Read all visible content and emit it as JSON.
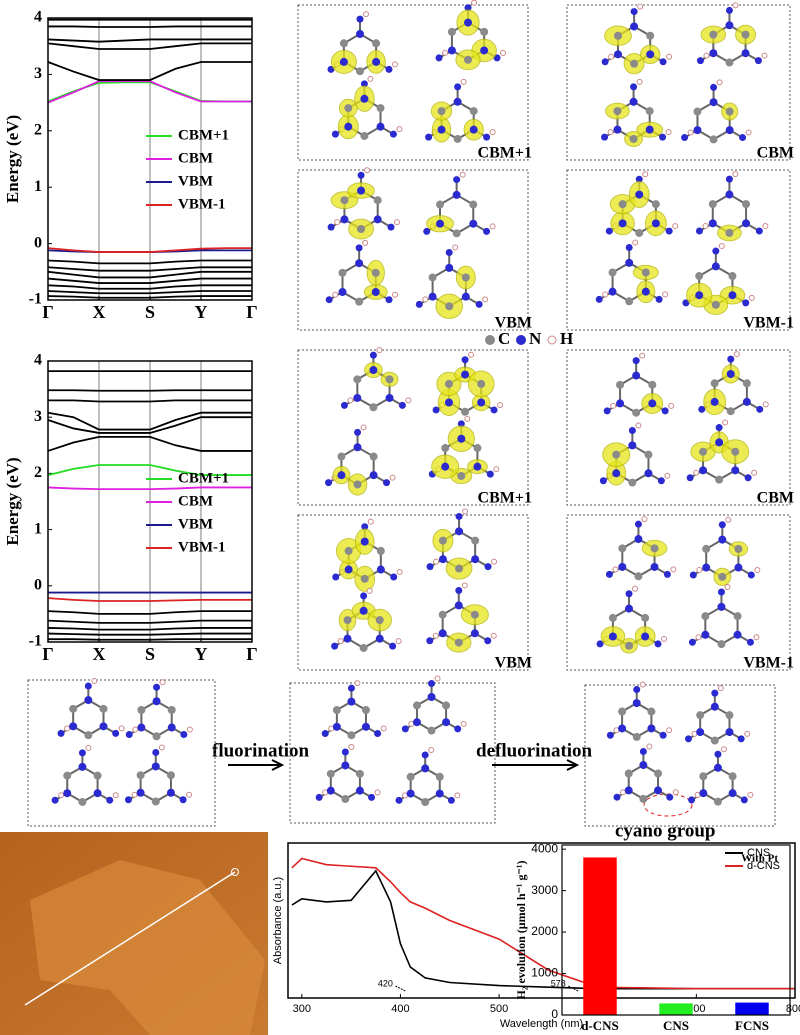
{
  "chart_data": [
    {
      "type": "line",
      "ylabel": "Energy (eV)",
      "x": [
        0,
        0.5,
        1,
        1.5,
        2,
        2.5,
        3,
        3.5,
        4
      ],
      "xlim": [
        0,
        4
      ],
      "xticks": [
        {
          "value": 0,
          "label": "Γ"
        },
        {
          "value": 1,
          "label": "X"
        },
        {
          "value": 2,
          "label": "S"
        },
        {
          "value": 3,
          "label": "Y"
        },
        {
          "value": 4,
          "label": "Γ"
        }
      ],
      "ylim": [
        -1,
        4
      ],
      "yticks": [
        -1,
        0,
        1,
        2,
        3,
        4
      ],
      "grid": true,
      "series": [
        {
          "name": "CBM+1",
          "color": "#22dd22",
          "values": [
            2.52,
            2.7,
            2.85,
            2.86,
            2.86,
            2.7,
            2.53,
            2.52,
            2.52
          ]
        },
        {
          "name": "CBM",
          "color": "#e020e0",
          "values": [
            2.5,
            2.68,
            2.88,
            2.88,
            2.88,
            2.68,
            2.52,
            2.52,
            2.52
          ]
        },
        {
          "name": "VBM",
          "color": "#1a1a8c",
          "values": [
            -0.12,
            -0.14,
            -0.15,
            -0.15,
            -0.15,
            -0.14,
            -0.12,
            -0.12,
            -0.12
          ]
        },
        {
          "name": "VBM-1",
          "color": "#dd2222",
          "values": [
            -0.08,
            -0.12,
            -0.15,
            -0.15,
            -0.15,
            -0.12,
            -0.09,
            -0.08,
            -0.08
          ]
        },
        {
          "color": "#000000",
          "values": [
            3.22,
            3.05,
            2.9,
            2.9,
            2.9,
            3.1,
            3.22,
            3.22,
            3.22
          ]
        },
        {
          "color": "#000000",
          "values": [
            3.55,
            3.5,
            3.45,
            3.45,
            3.45,
            3.5,
            3.55,
            3.55,
            3.55
          ]
        },
        {
          "color": "#000000",
          "values": [
            3.62,
            3.6,
            3.58,
            3.6,
            3.62,
            3.62,
            3.62,
            3.62,
            3.62
          ]
        },
        {
          "color": "#000000",
          "values": [
            3.85,
            3.85,
            3.84,
            3.84,
            3.84,
            3.85,
            3.85,
            3.85,
            3.85
          ]
        },
        {
          "color": "#000000",
          "values": [
            3.97,
            3.97,
            3.97,
            3.97,
            3.97,
            3.97,
            3.97,
            3.97,
            3.97
          ]
        },
        {
          "color": "#000000",
          "values": [
            -0.3,
            -0.32,
            -0.35,
            -0.35,
            -0.35,
            -0.32,
            -0.3,
            -0.3,
            -0.3
          ]
        },
        {
          "color": "#000000",
          "values": [
            -0.42,
            -0.45,
            -0.48,
            -0.48,
            -0.48,
            -0.45,
            -0.42,
            -0.42,
            -0.42
          ]
        },
        {
          "color": "#000000",
          "values": [
            -0.5,
            -0.55,
            -0.6,
            -0.6,
            -0.6,
            -0.55,
            -0.5,
            -0.5,
            -0.5
          ]
        },
        {
          "color": "#000000",
          "values": [
            -0.62,
            -0.66,
            -0.7,
            -0.7,
            -0.7,
            -0.66,
            -0.62,
            -0.62,
            -0.62
          ]
        },
        {
          "color": "#000000",
          "values": [
            -0.74,
            -0.76,
            -0.8,
            -0.8,
            -0.8,
            -0.76,
            -0.74,
            -0.74,
            -0.74
          ]
        },
        {
          "color": "#000000",
          "values": [
            -0.84,
            -0.86,
            -0.88,
            -0.88,
            -0.88,
            -0.86,
            -0.84,
            -0.84,
            -0.84
          ]
        },
        {
          "color": "#000000",
          "values": [
            -0.93,
            -0.94,
            -0.96,
            -0.96,
            -0.96,
            -0.94,
            -0.93,
            -0.93,
            -0.93
          ]
        }
      ]
    },
    {
      "type": "line",
      "ylabel": "Energy (eV)",
      "x": [
        0,
        0.5,
        1,
        1.5,
        2,
        2.5,
        3,
        3.5,
        4
      ],
      "xlim": [
        0,
        4
      ],
      "xticks": [
        {
          "value": 0,
          "label": "Γ"
        },
        {
          "value": 1,
          "label": "X"
        },
        {
          "value": 2,
          "label": "S"
        },
        {
          "value": 3,
          "label": "Y"
        },
        {
          "value": 4,
          "label": "Γ"
        }
      ],
      "ylim": [
        -1,
        4
      ],
      "yticks": [
        -1,
        0,
        1,
        2,
        3,
        4
      ],
      "grid": true,
      "series": [
        {
          "name": "CBM+1",
          "color": "#22dd22",
          "values": [
            1.97,
            2.08,
            2.15,
            2.15,
            2.15,
            2.05,
            1.97,
            1.97,
            1.97
          ]
        },
        {
          "name": "CBM",
          "color": "#e020e0",
          "values": [
            1.75,
            1.73,
            1.72,
            1.72,
            1.72,
            1.73,
            1.75,
            1.75,
            1.75
          ]
        },
        {
          "name": "VBM",
          "color": "#1a1a8c",
          "values": [
            -0.12,
            -0.12,
            -0.12,
            -0.12,
            -0.12,
            -0.12,
            -0.12,
            -0.12,
            -0.12
          ]
        },
        {
          "name": "VBM-1",
          "color": "#dd2222",
          "values": [
            -0.22,
            -0.25,
            -0.27,
            -0.27,
            -0.27,
            -0.26,
            -0.25,
            -0.25,
            -0.25
          ]
        },
        {
          "color": "#000000",
          "values": [
            2.4,
            2.55,
            2.65,
            2.65,
            2.65,
            2.5,
            2.4,
            2.4,
            2.4
          ]
        },
        {
          "color": "#000000",
          "values": [
            2.95,
            2.8,
            2.72,
            2.72,
            2.72,
            2.85,
            3.0,
            3.0,
            3.0
          ]
        },
        {
          "color": "#000000",
          "values": [
            3.08,
            3.0,
            2.78,
            2.78,
            2.78,
            2.95,
            3.08,
            3.08,
            3.08
          ]
        },
        {
          "color": "#000000",
          "values": [
            3.3,
            3.3,
            3.28,
            3.28,
            3.28,
            3.3,
            3.3,
            3.3,
            3.3
          ]
        },
        {
          "color": "#000000",
          "values": [
            3.48,
            3.48,
            3.47,
            3.47,
            3.47,
            3.48,
            3.48,
            3.48,
            3.48
          ]
        },
        {
          "color": "#000000",
          "values": [
            3.82,
            3.82,
            3.82,
            3.82,
            3.82,
            3.82,
            3.82,
            3.82,
            3.82
          ]
        },
        {
          "color": "#000000",
          "values": [
            -0.45,
            -0.47,
            -0.5,
            -0.5,
            -0.5,
            -0.47,
            -0.45,
            -0.45,
            -0.45
          ]
        },
        {
          "color": "#000000",
          "values": [
            -0.62,
            -0.64,
            -0.66,
            -0.66,
            -0.66,
            -0.64,
            -0.62,
            -0.62,
            -0.62
          ]
        },
        {
          "color": "#000000",
          "values": [
            -0.75,
            -0.76,
            -0.78,
            -0.78,
            -0.78,
            -0.76,
            -0.75,
            -0.75,
            -0.75
          ]
        },
        {
          "color": "#000000",
          "values": [
            -0.85,
            -0.86,
            -0.87,
            -0.87,
            -0.87,
            -0.86,
            -0.85,
            -0.85,
            -0.85
          ]
        },
        {
          "color": "#000000",
          "values": [
            -0.95,
            -0.95,
            -0.96,
            -0.96,
            -0.96,
            -0.95,
            -0.95,
            -0.95,
            -0.95
          ]
        }
      ]
    },
    {
      "type": "line",
      "xlabel": "Wavelength (nm)",
      "ylabel": "Absorbance (a.u.)",
      "x": [
        290,
        300,
        325,
        350,
        375,
        390,
        400,
        410,
        425,
        450,
        500,
        550,
        600,
        700,
        800
      ],
      "xlim": [
        286,
        800
      ],
      "xticks": [
        300,
        400,
        500,
        600,
        700,
        800
      ],
      "ylim": [
        0,
        1
      ],
      "legend": "top right",
      "series": [
        {
          "name": "CNS",
          "color": "#000000",
          "values": [
            0.6,
            0.64,
            0.62,
            0.63,
            0.82,
            0.62,
            0.35,
            0.2,
            0.13,
            0.1,
            0.08,
            0.07,
            0.06,
            0.06,
            0.06
          ]
        },
        {
          "name": "d-CNS",
          "color": "#dd2222",
          "values": [
            0.84,
            0.9,
            0.86,
            0.85,
            0.84,
            0.75,
            0.68,
            0.62,
            0.58,
            0.5,
            0.38,
            0.18,
            0.07,
            0.06,
            0.06
          ]
        }
      ],
      "annotations": [
        "420",
        "578"
      ]
    },
    {
      "type": "bar",
      "ylabel": "H₂ evolution (μmol h⁻¹ g⁻¹)",
      "annotation": "With Pt",
      "categories": [
        "d-CNS",
        "CNS",
        "FCNS"
      ],
      "values": [
        3800,
        280,
        300
      ],
      "colors": [
        "#ff0000",
        "#22ee22",
        "#0000ee"
      ],
      "ylim": [
        0,
        4100
      ],
      "yticks": [
        0,
        1000,
        2000,
        3000,
        4000
      ]
    }
  ],
  "panels": {
    "orbitals": [
      "CBM+1",
      "CBM",
      "VBM",
      "VBM-1",
      "CBM+1",
      "CBM",
      "VBM",
      "VBM-1"
    ],
    "atoms": [
      "C",
      "N",
      "H"
    ],
    "steps": [
      "fluorination",
      "defluorination"
    ],
    "cyano": "cyano group"
  }
}
